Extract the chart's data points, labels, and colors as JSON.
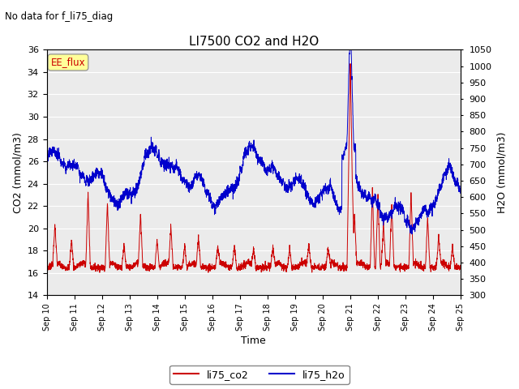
{
  "title": "LI7500 CO2 and H2O",
  "subtitle": "No data for f_li75_diag",
  "xlabel": "Time",
  "ylabel_left": "CO2 (mmol/m3)",
  "ylabel_right": "H2O (mmol/m3)",
  "ylim_left": [
    14,
    36
  ],
  "ylim_right": [
    300,
    1050
  ],
  "yticks_left": [
    14,
    16,
    18,
    20,
    22,
    24,
    26,
    28,
    30,
    32,
    34,
    36
  ],
  "yticks_right": [
    300,
    350,
    400,
    450,
    500,
    550,
    600,
    650,
    700,
    750,
    800,
    850,
    900,
    950,
    1000,
    1050
  ],
  "co2_color": "#cc0000",
  "h2o_color": "#0000cc",
  "legend_labels": [
    "li75_co2",
    "li75_h2o"
  ],
  "ee_flux_box_color": "#ffff99",
  "ee_flux_text": "EE_flux",
  "plot_bg_color": "#ebebeb",
  "grid_color": "#ffffff",
  "n_points": 3000,
  "xtick_labels": [
    "Sep 10",
    "Sep 11",
    "Sep 12",
    "Sep 13",
    "Sep 14",
    "Sep 15",
    "Sep 16",
    "Sep 17",
    "Sep 18",
    "Sep 19",
    "Sep 20",
    "Sep 21",
    "Sep 22",
    "Sep 23",
    "Sep 24",
    "Sep 25"
  ]
}
